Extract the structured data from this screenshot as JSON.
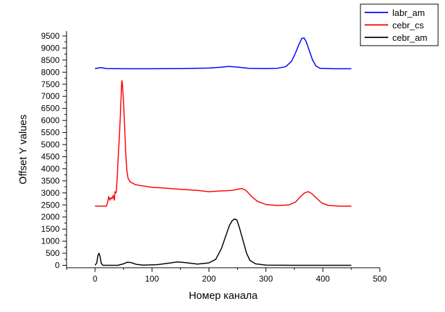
{
  "chart_data": {
    "type": "line",
    "title": "",
    "xlabel": "Номер канала",
    "ylabel": "Offset Y values",
    "xlim": [
      -50,
      500
    ],
    "ylim": [
      -100,
      9700
    ],
    "xticks": [
      0,
      100,
      200,
      300,
      400,
      500
    ],
    "yticks": [
      0,
      500,
      1000,
      1500,
      2000,
      2500,
      3000,
      3500,
      4000,
      4500,
      5000,
      5500,
      6000,
      6500,
      7000,
      7500,
      8000,
      8500,
      9000,
      9500
    ],
    "grid": false,
    "legend_position": "top-right",
    "series": [
      {
        "name": "labr_am",
        "color": "#0000ff",
        "points": [
          [
            0,
            8150
          ],
          [
            5,
            8170
          ],
          [
            10,
            8190
          ],
          [
            15,
            8170
          ],
          [
            20,
            8150
          ],
          [
            50,
            8140
          ],
          [
            100,
            8140
          ],
          [
            150,
            8150
          ],
          [
            200,
            8170
          ],
          [
            220,
            8200
          ],
          [
            235,
            8240
          ],
          [
            250,
            8210
          ],
          [
            270,
            8160
          ],
          [
            300,
            8150
          ],
          [
            320,
            8160
          ],
          [
            335,
            8230
          ],
          [
            345,
            8450
          ],
          [
            352,
            8800
          ],
          [
            358,
            9150
          ],
          [
            363,
            9400
          ],
          [
            367,
            9420
          ],
          [
            371,
            9250
          ],
          [
            376,
            8900
          ],
          [
            382,
            8500
          ],
          [
            388,
            8250
          ],
          [
            395,
            8160
          ],
          [
            420,
            8140
          ],
          [
            450,
            8140
          ]
        ]
      },
      {
        "name": "cebr_cs",
        "color": "#ff0000",
        "points": [
          [
            0,
            2450
          ],
          [
            10,
            2450
          ],
          [
            20,
            2450
          ],
          [
            22,
            2600
          ],
          [
            24,
            2850
          ],
          [
            26,
            2700
          ],
          [
            28,
            2800
          ],
          [
            30,
            2750
          ],
          [
            32,
            2900
          ],
          [
            34,
            2700
          ],
          [
            35,
            3050
          ],
          [
            37,
            3000
          ],
          [
            39,
            3600
          ],
          [
            40,
            4200
          ],
          [
            42,
            5000
          ],
          [
            44,
            6000
          ],
          [
            46,
            7100
          ],
          [
            47,
            7650
          ],
          [
            48,
            7550
          ],
          [
            50,
            6800
          ],
          [
            52,
            5700
          ],
          [
            54,
            4600
          ],
          [
            56,
            3900
          ],
          [
            58,
            3600
          ],
          [
            62,
            3450
          ],
          [
            70,
            3350
          ],
          [
            80,
            3300
          ],
          [
            100,
            3230
          ],
          [
            120,
            3200
          ],
          [
            150,
            3150
          ],
          [
            180,
            3100
          ],
          [
            200,
            3050
          ],
          [
            220,
            3080
          ],
          [
            240,
            3100
          ],
          [
            250,
            3150
          ],
          [
            258,
            3180
          ],
          [
            265,
            3100
          ],
          [
            275,
            2850
          ],
          [
            285,
            2650
          ],
          [
            300,
            2520
          ],
          [
            320,
            2480
          ],
          [
            340,
            2500
          ],
          [
            352,
            2620
          ],
          [
            360,
            2830
          ],
          [
            368,
            3000
          ],
          [
            374,
            3050
          ],
          [
            380,
            2980
          ],
          [
            388,
            2800
          ],
          [
            398,
            2580
          ],
          [
            410,
            2480
          ],
          [
            430,
            2450
          ],
          [
            450,
            2450
          ]
        ]
      },
      {
        "name": "cebr_am",
        "color": "#000000",
        "points": [
          [
            0,
            0
          ],
          [
            3,
            100
          ],
          [
            5,
            400
          ],
          [
            7,
            500
          ],
          [
            9,
            350
          ],
          [
            11,
            80
          ],
          [
            14,
            0
          ],
          [
            40,
            0
          ],
          [
            50,
            60
          ],
          [
            57,
            130
          ],
          [
            64,
            110
          ],
          [
            72,
            40
          ],
          [
            85,
            10
          ],
          [
            110,
            30
          ],
          [
            130,
            90
          ],
          [
            145,
            140
          ],
          [
            160,
            110
          ],
          [
            180,
            50
          ],
          [
            200,
            100
          ],
          [
            212,
            250
          ],
          [
            222,
            700
          ],
          [
            230,
            1250
          ],
          [
            236,
            1650
          ],
          [
            241,
            1850
          ],
          [
            245,
            1920
          ],
          [
            249,
            1880
          ],
          [
            253,
            1600
          ],
          [
            259,
            1100
          ],
          [
            266,
            500
          ],
          [
            272,
            200
          ],
          [
            282,
            60
          ],
          [
            300,
            10
          ],
          [
            350,
            0
          ],
          [
            400,
            0
          ],
          [
            450,
            0
          ]
        ]
      }
    ]
  }
}
